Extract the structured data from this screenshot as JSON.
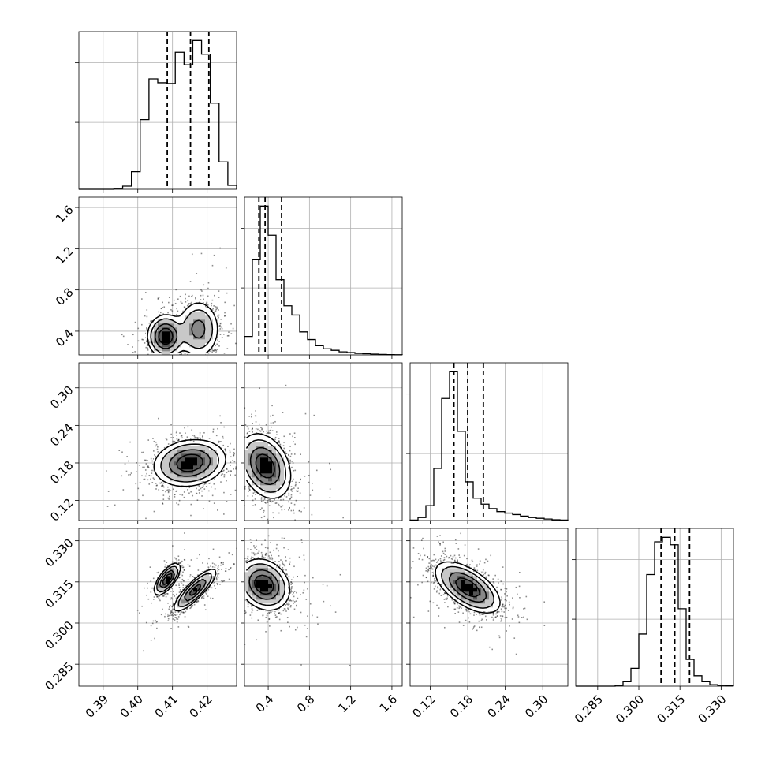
{
  "chart_data": {
    "type": "corner",
    "title": "",
    "parameters": [
      "",
      "",
      "",
      ""
    ],
    "ranges": [
      [
        0.383,
        0.4285
      ],
      [
        0.17,
        1.7
      ],
      [
        0.088,
        0.34
      ],
      [
        0.277,
        0.3345
      ]
    ],
    "ticks": [
      {
        "values": [
          0.39,
          0.4,
          0.41,
          0.42
        ],
        "labels": [
          "0.39",
          "0.40",
          "0.41",
          "0.42"
        ]
      },
      {
        "values": [
          0.4,
          0.8,
          1.2,
          1.6
        ],
        "labels": [
          "0.4",
          "0.8",
          "1.2",
          "1.6"
        ]
      },
      {
        "values": [
          0.12,
          0.18,
          0.24,
          0.3
        ],
        "labels": [
          "0.12",
          "0.18",
          "0.24",
          "0.30"
        ]
      },
      {
        "values": [
          0.285,
          0.3,
          0.315,
          0.33
        ],
        "labels": [
          "0.285",
          "0.300",
          "0.315",
          "0.330"
        ]
      }
    ],
    "quantiles": [
      [
        0.4085,
        0.4152,
        0.4205
      ],
      [
        0.31,
        0.37,
        0.53
      ],
      [
        0.158,
        0.18,
        0.205
      ],
      [
        0.3081,
        0.3131,
        0.3185
      ]
    ],
    "histograms": [
      {
        "counts": [
          0,
          0,
          0,
          0,
          2,
          8,
          45,
          178,
          282,
          272,
          270,
          350,
          318,
          380,
          345,
          220,
          70,
          10
        ]
      },
      {
        "counts": [
          0.12,
          0.62,
          0.97,
          0.78,
          0.49,
          0.32,
          0.26,
          0.15,
          0.1,
          0.06,
          0.04,
          0.03,
          0.02,
          0.015,
          0.01,
          0.008,
          0.005,
          0.003,
          0.002,
          0.001
        ]
      },
      {
        "counts": [
          0.003,
          0.02,
          0.1,
          0.35,
          0.82,
          1.0,
          0.6,
          0.26,
          0.15,
          0.11,
          0.08,
          0.06,
          0.05,
          0.04,
          0.03,
          0.02,
          0.015,
          0.01,
          0.005,
          0.003
        ]
      },
      {
        "counts": [
          0,
          0,
          0,
          0,
          0,
          0.005,
          0.03,
          0.12,
          0.35,
          0.75,
          0.97,
          1.0,
          0.95,
          0.52,
          0.18,
          0.07,
          0.03,
          0.01,
          0.005,
          0.002
        ]
      }
    ],
    "pairs": [
      {
        "x_param": 0,
        "y_param": 1,
        "modes": [
          {
            "mx": 0.408,
            "my": 0.35,
            "sx": 0.0025,
            "sy": 0.1,
            "rho": 0,
            "w": 0.5
          },
          {
            "mx": 0.4175,
            "my": 0.42,
            "sx": 0.003,
            "sy": 0.14,
            "rho": 0,
            "w": 0.5
          }
        ]
      },
      {
        "x_param": 0,
        "y_param": 2,
        "modes": [
          {
            "mx": 0.415,
            "my": 0.18,
            "sx": 0.005,
            "sy": 0.018,
            "rho": 0.15,
            "w": 1.0
          }
        ]
      },
      {
        "x_param": 0,
        "y_param": 3,
        "modes": [
          {
            "mx": 0.4085,
            "my": 0.316,
            "sx": 0.0018,
            "sy": 0.0028,
            "rho": 0.7,
            "w": 0.4
          },
          {
            "mx": 0.4165,
            "my": 0.312,
            "sx": 0.003,
            "sy": 0.0038,
            "rho": 0.85,
            "w": 0.6
          }
        ]
      },
      {
        "x_param": 1,
        "y_param": 2,
        "modes": [
          {
            "mx": 0.37,
            "my": 0.175,
            "sx": 0.12,
            "sy": 0.025,
            "rho": -0.3,
            "w": 1.0
          }
        ]
      },
      {
        "x_param": 1,
        "y_param": 3,
        "modes": [
          {
            "mx": 0.36,
            "my": 0.314,
            "sx": 0.12,
            "sy": 0.0045,
            "rho": -0.2,
            "w": 1.0
          }
        ]
      },
      {
        "x_param": 2,
        "y_param": 3,
        "modes": [
          {
            "mx": 0.18,
            "my": 0.313,
            "sx": 0.025,
            "sy": 0.0045,
            "rho": -0.6,
            "w": 1.0
          }
        ]
      }
    ],
    "grid": true,
    "legend": "none"
  }
}
